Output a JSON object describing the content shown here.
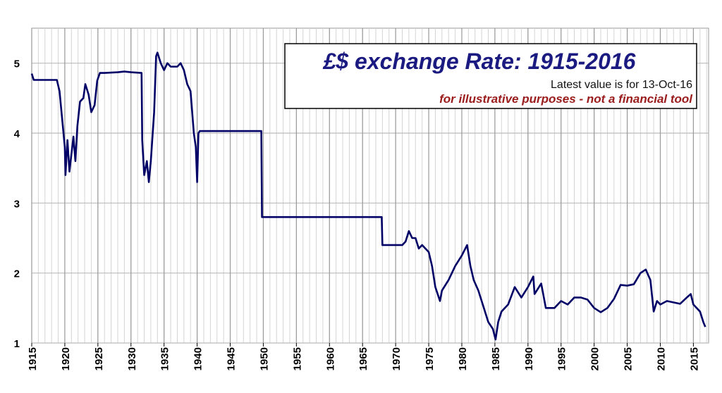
{
  "chart_data": {
    "type": "line",
    "title": "£$ exchange Rate: 1915-2016",
    "subtitle": "Latest value is for 13-Oct-16",
    "annotation": "for illustrative purposes - not a financial tool",
    "xlim": [
      1915,
      2017.3
    ],
    "ylim": [
      1,
      5.5
    ],
    "xticks": [
      1915,
      1920,
      1925,
      1930,
      1935,
      1940,
      1945,
      1950,
      1955,
      1960,
      1965,
      1970,
      1975,
      1980,
      1985,
      1990,
      1995,
      2000,
      2005,
      2010,
      2015
    ],
    "yticks": [
      1,
      2,
      3,
      4,
      5
    ],
    "grid": true,
    "x_minor_step": 1,
    "series": [
      {
        "color": "#000066",
        "x": [
          1915,
          1915.3,
          1916,
          1918.8,
          1919.2,
          1919.6,
          1920,
          1920.1,
          1920.4,
          1920.7,
          1921,
          1921.3,
          1921.6,
          1921.9,
          1922.3,
          1922.8,
          1923.1,
          1923.6,
          1924,
          1924.5,
          1924.9,
          1925.3,
          1926,
          1928,
          1929,
          1930,
          1931.6,
          1931.7,
          1932,
          1932.4,
          1932.7,
          1933,
          1933.5,
          1933.8,
          1934,
          1934.5,
          1935,
          1935.5,
          1936,
          1937,
          1937.5,
          1938,
          1938.5,
          1939,
          1939.5,
          1939.8,
          1940,
          1940.2,
          1940.4,
          1949.7,
          1949.8,
          1967.9,
          1968,
          1971,
          1971.5,
          1972,
          1972.5,
          1973,
          1973.5,
          1974,
          1975,
          1975.5,
          1976,
          1976.7,
          1977,
          1978,
          1979,
          1980,
          1980.8,
          1981.3,
          1981.8,
          1982.5,
          1983,
          1984,
          1984.7,
          1985.1,
          1985.5,
          1986,
          1987,
          1988,
          1989,
          1990,
          1990.8,
          1991,
          1992,
          1992.7,
          1993,
          1994,
          1995,
          1996,
          1997,
          1998,
          1999,
          2000,
          2001,
          2002,
          2003,
          2004,
          2005,
          2006,
          2007,
          2007.8,
          2008.5,
          2009,
          2009.5,
          2010,
          2011,
          2012,
          2013,
          2014,
          2014.6,
          2015,
          2016,
          2016.5,
          2016.8
        ],
        "values": [
          4.85,
          4.76,
          4.76,
          4.76,
          4.6,
          4.2,
          3.8,
          3.4,
          3.9,
          3.45,
          3.7,
          3.95,
          3.6,
          4.1,
          4.45,
          4.5,
          4.7,
          4.55,
          4.3,
          4.4,
          4.75,
          4.86,
          4.86,
          4.87,
          4.88,
          4.87,
          4.86,
          3.9,
          3.4,
          3.6,
          3.3,
          3.6,
          4.3,
          5.1,
          5.15,
          5.0,
          4.9,
          5.0,
          4.95,
          4.95,
          5.0,
          4.9,
          4.7,
          4.6,
          4.0,
          3.8,
          3.3,
          4.0,
          4.03,
          4.03,
          2.8,
          2.8,
          2.4,
          2.4,
          2.45,
          2.6,
          2.5,
          2.5,
          2.35,
          2.4,
          2.3,
          2.1,
          1.8,
          1.6,
          1.75,
          1.9,
          2.1,
          2.25,
          2.4,
          2.1,
          1.9,
          1.75,
          1.6,
          1.3,
          1.2,
          1.05,
          1.3,
          1.45,
          1.55,
          1.8,
          1.65,
          1.8,
          1.95,
          1.7,
          1.85,
          1.5,
          1.5,
          1.5,
          1.6,
          1.55,
          1.65,
          1.65,
          1.62,
          1.5,
          1.44,
          1.5,
          1.63,
          1.83,
          1.82,
          1.84,
          2.0,
          2.05,
          1.9,
          1.45,
          1.6,
          1.55,
          1.6,
          1.58,
          1.56,
          1.65,
          1.7,
          1.55,
          1.45,
          1.3,
          1.23
        ]
      }
    ]
  }
}
